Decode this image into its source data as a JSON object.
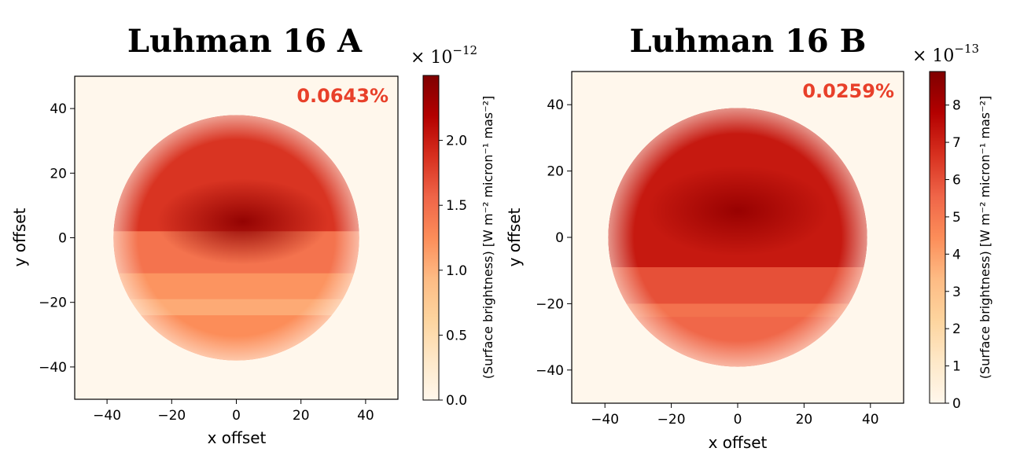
{
  "colors": {
    "background": "#fdf5e8",
    "annotation": "#e8402a",
    "cmap": [
      "#fff7ec",
      "#fee8c8",
      "#fdd49e",
      "#fdbb84",
      "#fc8d59",
      "#ef6548",
      "#d7301f",
      "#b30000",
      "#7f0000"
    ]
  },
  "chart_data": [
    {
      "type": "heatmap",
      "title": "Luhman 16 A",
      "xlabel": "x offset",
      "ylabel": "y offset",
      "xlim": [
        -50,
        50
      ],
      "ylim": [
        -50,
        50
      ],
      "xticks": [
        -40,
        -20,
        0,
        20,
        40
      ],
      "yticks": [
        -40,
        -20,
        0,
        20,
        40
      ],
      "xtick_labels": [
        "−40",
        "−20",
        "0",
        "20",
        "40"
      ],
      "ytick_labels": [
        "−40",
        "−20",
        "0",
        "20",
        "40"
      ],
      "annotation": "0.0643%",
      "disk_radius": 38,
      "disk_center": [
        0,
        0
      ],
      "bands": [
        {
          "y_min": 2,
          "y_max": 38,
          "value": 1.85
        },
        {
          "y_min": -11,
          "y_max": 2,
          "value": 1.45
        },
        {
          "y_min": -19,
          "y_max": -11,
          "value": 1.2
        },
        {
          "y_min": -24,
          "y_max": -19,
          "value": 1.05
        },
        {
          "y_min": -38,
          "y_max": -24,
          "value": 1.25
        }
      ],
      "peak": {
        "x": 2,
        "y": 5,
        "value": 2.4
      },
      "colorbar": {
        "label": "(Surface brightness) [W m⁻² micron⁻¹ mas⁻²]",
        "range": [
          0,
          2.5
        ],
        "ticks": [
          0.0,
          0.5,
          1.0,
          1.5,
          2.0
        ],
        "tick_labels": [
          "0.0",
          "0.5",
          "1.0",
          "1.5",
          "2.0"
        ],
        "multiplier_base": "× 10",
        "multiplier_exponent": "−12"
      }
    },
    {
      "type": "heatmap",
      "title": "Luhman 16 B",
      "xlabel": "x offset",
      "ylabel": "y offset",
      "xlim": [
        -50,
        50
      ],
      "ylim": [
        -50,
        50
      ],
      "xticks": [
        -40,
        -20,
        0,
        20,
        40
      ],
      "yticks": [
        -40,
        -20,
        0,
        20,
        40
      ],
      "xtick_labels": [
        "−40",
        "−20",
        "0",
        "20",
        "40"
      ],
      "ytick_labels": [
        "−40",
        "−20",
        "0",
        "20",
        "40"
      ],
      "annotation": "0.0259%",
      "disk_radius": 39,
      "disk_center": [
        0,
        0
      ],
      "bands": [
        {
          "y_min": -9,
          "y_max": 39,
          "value": 7.2
        },
        {
          "y_min": -20,
          "y_max": -9,
          "value": 6.0
        },
        {
          "y_min": -24,
          "y_max": -20,
          "value": 5.2
        },
        {
          "y_min": -39,
          "y_max": -24,
          "value": 5.5
        }
      ],
      "peak": {
        "x": 0,
        "y": 8,
        "value": 8.4
      },
      "colorbar": {
        "label": "(Surface brightness) [W m⁻² micron⁻¹ mas⁻²]",
        "range": [
          0,
          8.9
        ],
        "ticks": [
          0,
          1,
          2,
          3,
          4,
          5,
          6,
          7,
          8
        ],
        "tick_labels": [
          "0",
          "1",
          "2",
          "3",
          "4",
          "5",
          "6",
          "7",
          "8"
        ],
        "multiplier_base": "× 10",
        "multiplier_exponent": "−13"
      }
    }
  ]
}
